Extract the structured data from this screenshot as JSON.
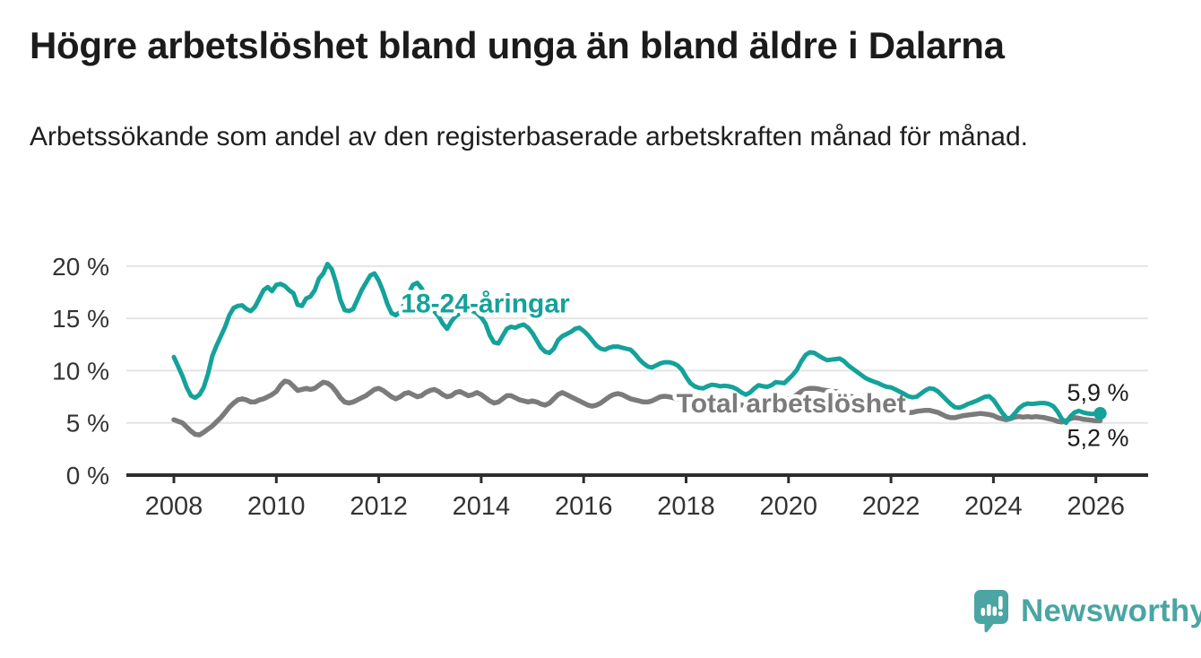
{
  "header": {
    "title": "Högre arbetslöshet bland unga än bland äldre i Dalarna",
    "subtitle": "Arbetssökande som andel av den registerbaserade arbetskraften månad för månad."
  },
  "footer": {
    "brand": "Newsworthy"
  },
  "chart_data": {
    "type": "line",
    "unit": "%",
    "frequency": "monthly",
    "x_start": "2008-01",
    "x_end": "2026-02",
    "ylim": [
      0,
      21.8
    ],
    "yticks": [
      0,
      5,
      10,
      15,
      20
    ],
    "ytick_suffix": " %",
    "xticks": [
      2008,
      2010,
      2012,
      2014,
      2016,
      2018,
      2020,
      2022,
      2024,
      2026
    ],
    "grid": "horizontal",
    "legend_position": "inline-labels",
    "colors": {
      "accent_teal": "#14a29a",
      "neutral_gray": "#7b7b7b",
      "axis": "#2d2d2d",
      "grid": "#e4e4e4",
      "tick_text": "#333333",
      "value_label_text": "#1a1a1a",
      "brand_teal": "#4aa5a3"
    },
    "series": [
      {
        "id": "youth",
        "name": "18-24-åringar",
        "color": "#14a29a",
        "label_anchor": {
          "year": 2014.08,
          "value": 16.43
        },
        "end_label": "5,9 %",
        "end_value": 5.9,
        "end_dot": true,
        "values": [
          11.3,
          10.4,
          9.5,
          8.4,
          7.6,
          7.4,
          7.7,
          8.4,
          9.7,
          11.4,
          12.4,
          13.3,
          14.2,
          15.3,
          16.0,
          16.2,
          16.25,
          15.9,
          15.7,
          16.1,
          16.9,
          17.7,
          18.0,
          17.6,
          18.2,
          18.3,
          18.1,
          17.7,
          17.4,
          16.3,
          16.2,
          16.9,
          17.1,
          17.7,
          18.8,
          19.3,
          20.2,
          19.7,
          18.4,
          16.8,
          15.8,
          15.7,
          15.9,
          16.8,
          17.7,
          18.4,
          19.1,
          19.3,
          18.6,
          17.6,
          16.4,
          15.5,
          15.3,
          15.6,
          16.4,
          17.4,
          18.2,
          18.4,
          17.9,
          17.1,
          16.3,
          15.7,
          15.2,
          14.5,
          14.0,
          14.7,
          15.2,
          15.5,
          15.7,
          15.8,
          15.7,
          15.5,
          15.1,
          14.5,
          13.4,
          12.7,
          12.6,
          13.3,
          14.0,
          14.2,
          14.1,
          14.3,
          14.4,
          14.1,
          13.6,
          12.9,
          12.2,
          11.8,
          11.7,
          12.1,
          12.9,
          13.3,
          13.5,
          13.7,
          14.0,
          14.1,
          13.8,
          13.4,
          12.9,
          12.4,
          12.1,
          12.0,
          12.2,
          12.3,
          12.3,
          12.2,
          12.1,
          12.0,
          11.6,
          11.1,
          10.7,
          10.4,
          10.3,
          10.5,
          10.7,
          10.8,
          10.8,
          10.7,
          10.5,
          10.1,
          9.4,
          8.8,
          8.5,
          8.35,
          8.3,
          8.5,
          8.65,
          8.6,
          8.5,
          8.55,
          8.5,
          8.4,
          8.2,
          7.9,
          7.7,
          7.9,
          8.3,
          8.6,
          8.5,
          8.45,
          8.6,
          8.9,
          8.85,
          8.8,
          9.2,
          9.6,
          10.1,
          10.9,
          11.5,
          11.75,
          11.7,
          11.45,
          11.2,
          11.0,
          11.05,
          11.1,
          11.15,
          10.9,
          10.5,
          10.2,
          9.9,
          9.6,
          9.3,
          9.1,
          8.95,
          8.8,
          8.6,
          8.45,
          8.4,
          8.2,
          8.0,
          7.8,
          7.55,
          7.45,
          7.5,
          7.8,
          8.1,
          8.3,
          8.25,
          8.0,
          7.6,
          7.2,
          6.8,
          6.5,
          6.45,
          6.6,
          6.8,
          6.95,
          7.1,
          7.3,
          7.5,
          7.55,
          7.2,
          6.6,
          6.0,
          5.5,
          5.45,
          5.9,
          6.4,
          6.7,
          6.85,
          6.8,
          6.85,
          6.9,
          6.9,
          6.8,
          6.6,
          6.1,
          5.4,
          5.0,
          5.6,
          6.0,
          6.15,
          6.0,
          5.9,
          5.85,
          5.85,
          5.9
        ]
      },
      {
        "id": "total",
        "name": "Total arbetslöshet",
        "color": "#7b7b7b",
        "label_anchor": {
          "year": 2020.05,
          "value": 6.85
        },
        "end_label": "5,2 %",
        "end_value": 5.2,
        "end_dot": false,
        "values": [
          5.3,
          5.15,
          5.0,
          4.6,
          4.2,
          3.9,
          3.85,
          4.1,
          4.4,
          4.7,
          5.1,
          5.5,
          6.0,
          6.5,
          6.9,
          7.2,
          7.3,
          7.2,
          7.0,
          7.0,
          7.2,
          7.3,
          7.5,
          7.7,
          8.0,
          8.6,
          9.0,
          8.9,
          8.5,
          8.1,
          8.2,
          8.3,
          8.2,
          8.3,
          8.6,
          8.9,
          8.8,
          8.5,
          8.0,
          7.4,
          7.0,
          6.9,
          7.0,
          7.2,
          7.4,
          7.6,
          7.9,
          8.2,
          8.3,
          8.1,
          7.8,
          7.5,
          7.3,
          7.5,
          7.8,
          7.9,
          7.7,
          7.5,
          7.6,
          7.9,
          8.1,
          8.2,
          8.0,
          7.7,
          7.5,
          7.6,
          7.9,
          8.0,
          7.8,
          7.6,
          7.7,
          7.9,
          7.7,
          7.4,
          7.1,
          6.9,
          7.0,
          7.3,
          7.6,
          7.6,
          7.4,
          7.2,
          7.1,
          7.0,
          7.1,
          7.0,
          6.8,
          6.7,
          6.9,
          7.3,
          7.7,
          7.9,
          7.7,
          7.5,
          7.3,
          7.1,
          6.9,
          6.7,
          6.6,
          6.7,
          6.9,
          7.2,
          7.5,
          7.7,
          7.8,
          7.7,
          7.5,
          7.3,
          7.2,
          7.1,
          7.0,
          7.0,
          7.1,
          7.3,
          7.5,
          7.55,
          7.5,
          7.4,
          7.3,
          7.3,
          7.3,
          7.2,
          7.1,
          7.0,
          6.9,
          7.0,
          7.1,
          7.1,
          7.0,
          6.9,
          6.8,
          6.8,
          6.8,
          6.7,
          6.7,
          6.7,
          6.8,
          6.9,
          7.0,
          7.0,
          7.0,
          7.1,
          7.1,
          7.2,
          7.3,
          7.4,
          7.7,
          8.0,
          8.2,
          8.3,
          8.3,
          8.25,
          8.15,
          8.1,
          8.0,
          8.0,
          7.9,
          7.8,
          7.6,
          7.5,
          7.3,
          7.2,
          7.0,
          6.9,
          6.7,
          6.6,
          6.5,
          6.45,
          6.4,
          6.3,
          6.2,
          6.1,
          6.0,
          6.0,
          6.1,
          6.15,
          6.2,
          6.2,
          6.1,
          6.0,
          5.8,
          5.6,
          5.5,
          5.5,
          5.6,
          5.7,
          5.75,
          5.8,
          5.85,
          5.9,
          5.85,
          5.8,
          5.7,
          5.5,
          5.4,
          5.3,
          5.4,
          5.55,
          5.6,
          5.55,
          5.6,
          5.55,
          5.6,
          5.55,
          5.5,
          5.4,
          5.3,
          5.15,
          5.08,
          5.2,
          5.4,
          5.5,
          5.45,
          5.35,
          5.3,
          5.25,
          5.2,
          5.2
        ]
      }
    ]
  }
}
